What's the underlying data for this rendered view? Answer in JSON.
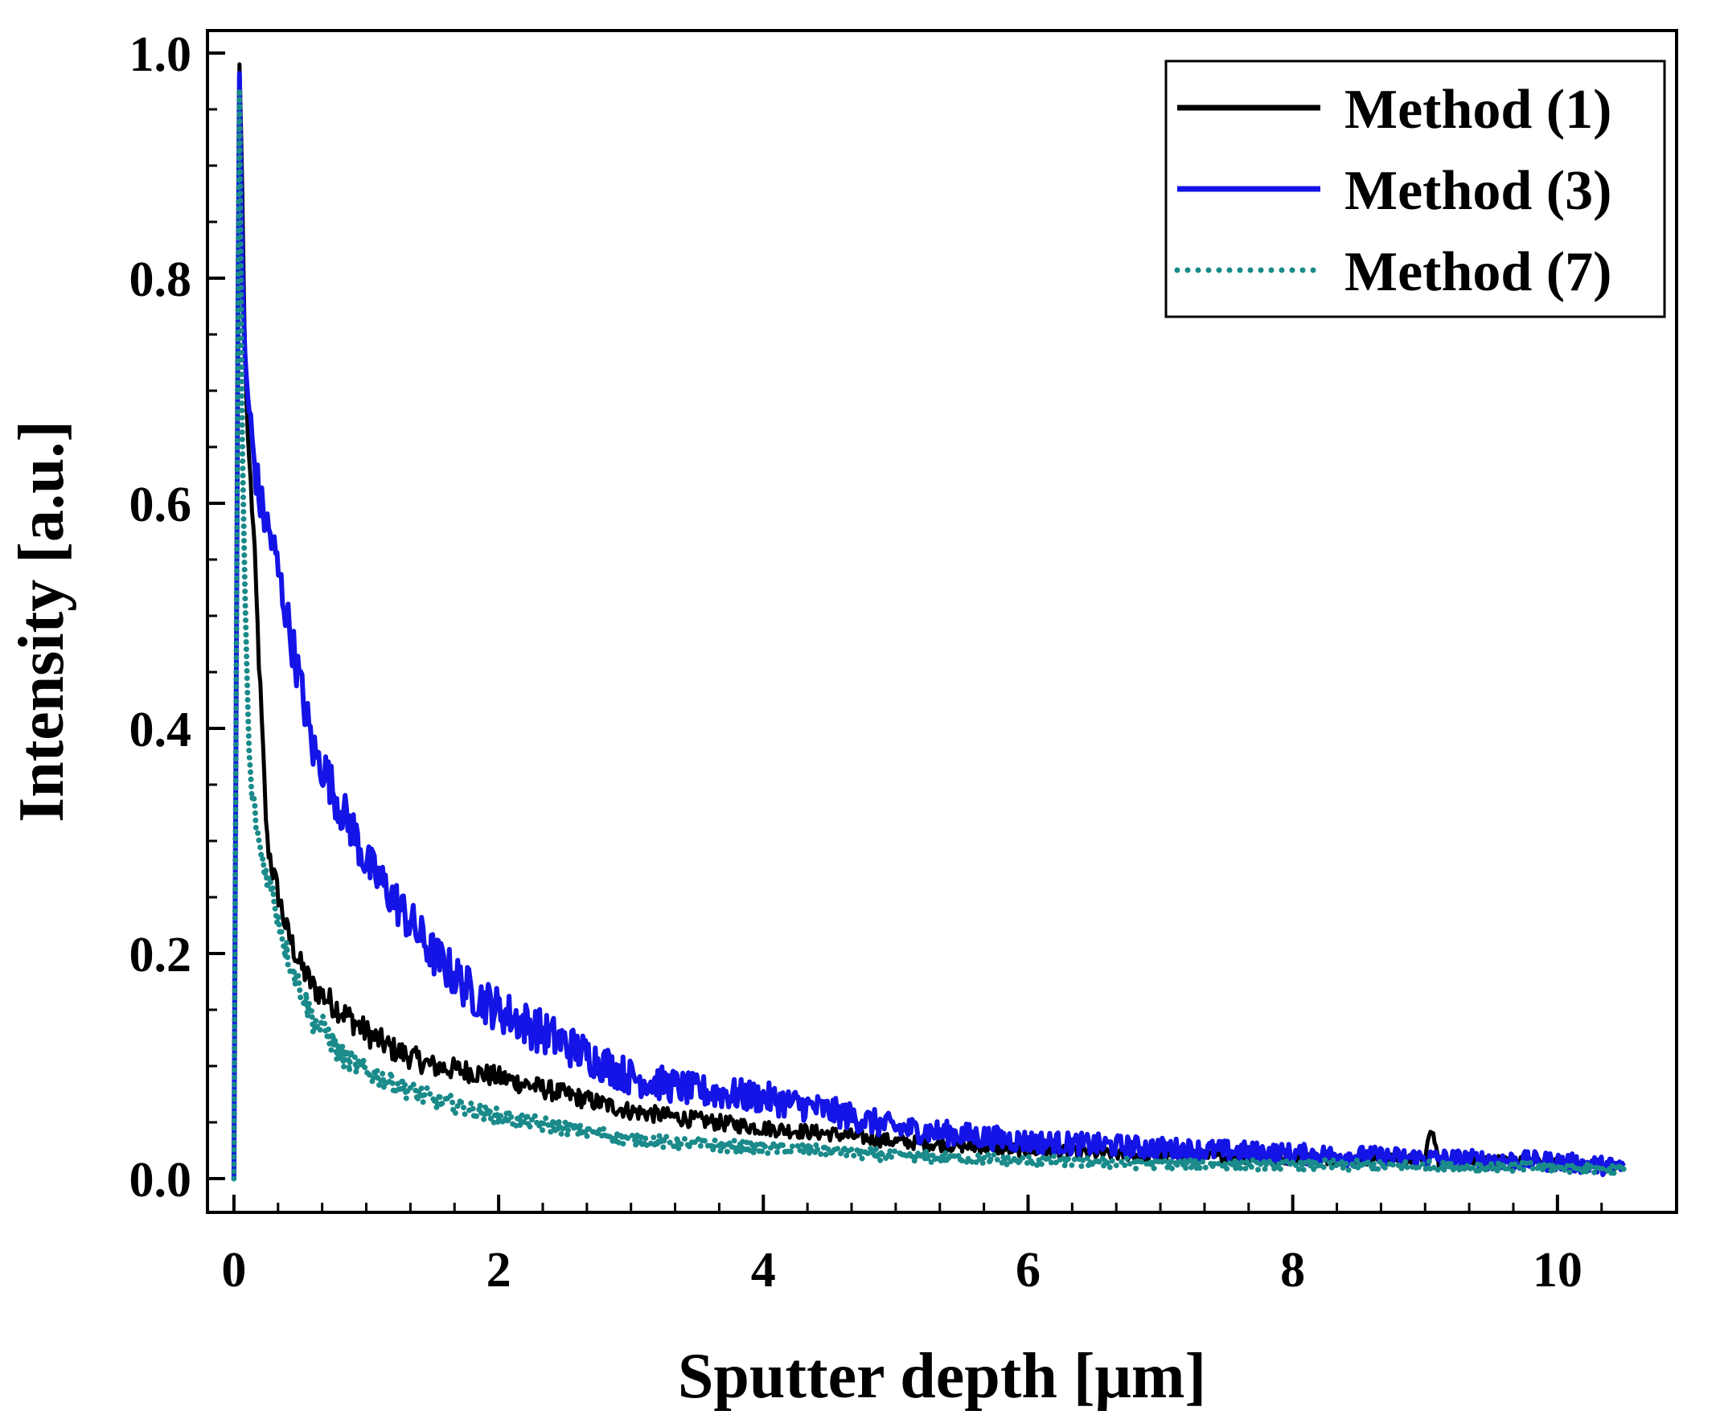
{
  "chart_data": {
    "type": "line",
    "title": "",
    "xlabel": "Sputter depth [μm]",
    "ylabel": "Intensity [a.u.]",
    "xlim": [
      -0.2,
      10.9
    ],
    "ylim": [
      -0.03,
      1.02
    ],
    "xticks": [
      0,
      2,
      4,
      6,
      8,
      10
    ],
    "xtick_labels": [
      "0",
      "2",
      "4",
      "6",
      "8",
      "10"
    ],
    "yticks": [
      0.0,
      0.2,
      0.4,
      0.6,
      0.8,
      1.0
    ],
    "ytick_labels": [
      "0.0",
      "0.2",
      "0.4",
      "0.6",
      "0.8",
      "1.0"
    ],
    "grid": false,
    "legend_position": "top-right",
    "series": [
      {
        "name": "Method (1)",
        "color": "#000000",
        "style": "solid",
        "x": [
          0.0,
          0.04,
          0.06,
          0.08,
          0.1,
          0.15,
          0.2,
          0.25,
          0.3,
          0.4,
          0.5,
          0.6,
          0.7,
          0.8,
          1.0,
          1.2,
          1.5,
          1.8,
          2.0,
          2.5,
          3.0,
          3.5,
          4.0,
          4.5,
          5.0,
          6.0,
          7.0,
          8.0,
          9.0,
          9.05,
          9.1,
          10.0,
          10.5
        ],
        "y": [
          0.0,
          1.0,
          0.9,
          0.75,
          0.67,
          0.57,
          0.43,
          0.3,
          0.27,
          0.22,
          0.19,
          0.17,
          0.16,
          0.15,
          0.13,
          0.115,
          0.1,
          0.095,
          0.09,
          0.075,
          0.06,
          0.052,
          0.045,
          0.04,
          0.033,
          0.025,
          0.02,
          0.018,
          0.017,
          0.045,
          0.016,
          0.014,
          0.01
        ]
      },
      {
        "name": "Method (3)",
        "color": "#1414e6",
        "style": "solid",
        "x": [
          0.0,
          0.04,
          0.06,
          0.08,
          0.1,
          0.15,
          0.2,
          0.3,
          0.4,
          0.5,
          0.6,
          0.7,
          0.8,
          0.9,
          1.0,
          1.2,
          1.5,
          1.8,
          2.0,
          2.5,
          3.0,
          3.5,
          4.0,
          4.5,
          5.0,
          6.0,
          7.0,
          8.0,
          9.0,
          10.0,
          10.5
        ],
        "y": [
          0.0,
          1.0,
          0.82,
          0.74,
          0.7,
          0.64,
          0.6,
          0.56,
          0.5,
          0.44,
          0.38,
          0.36,
          0.33,
          0.31,
          0.28,
          0.25,
          0.2,
          0.165,
          0.15,
          0.12,
          0.09,
          0.078,
          0.072,
          0.06,
          0.045,
          0.033,
          0.027,
          0.022,
          0.018,
          0.015,
          0.01
        ]
      },
      {
        "name": "Method (7)",
        "color": "#1a8a8a",
        "style": "dotted",
        "x": [
          0.0,
          0.04,
          0.06,
          0.08,
          0.1,
          0.12,
          0.15,
          0.2,
          0.3,
          0.4,
          0.5,
          0.6,
          0.7,
          0.8,
          1.0,
          1.2,
          1.5,
          2.0,
          2.5,
          3.0,
          3.5,
          4.0,
          4.5,
          5.0,
          6.0,
          7.0,
          8.0,
          9.0,
          10.0,
          10.5
        ],
        "y": [
          0.0,
          1.0,
          0.68,
          0.54,
          0.44,
          0.36,
          0.33,
          0.29,
          0.25,
          0.2,
          0.17,
          0.14,
          0.13,
          0.11,
          0.095,
          0.085,
          0.07,
          0.055,
          0.045,
          0.035,
          0.03,
          0.027,
          0.025,
          0.02,
          0.016,
          0.013,
          0.012,
          0.011,
          0.01,
          0.008
        ]
      }
    ]
  }
}
